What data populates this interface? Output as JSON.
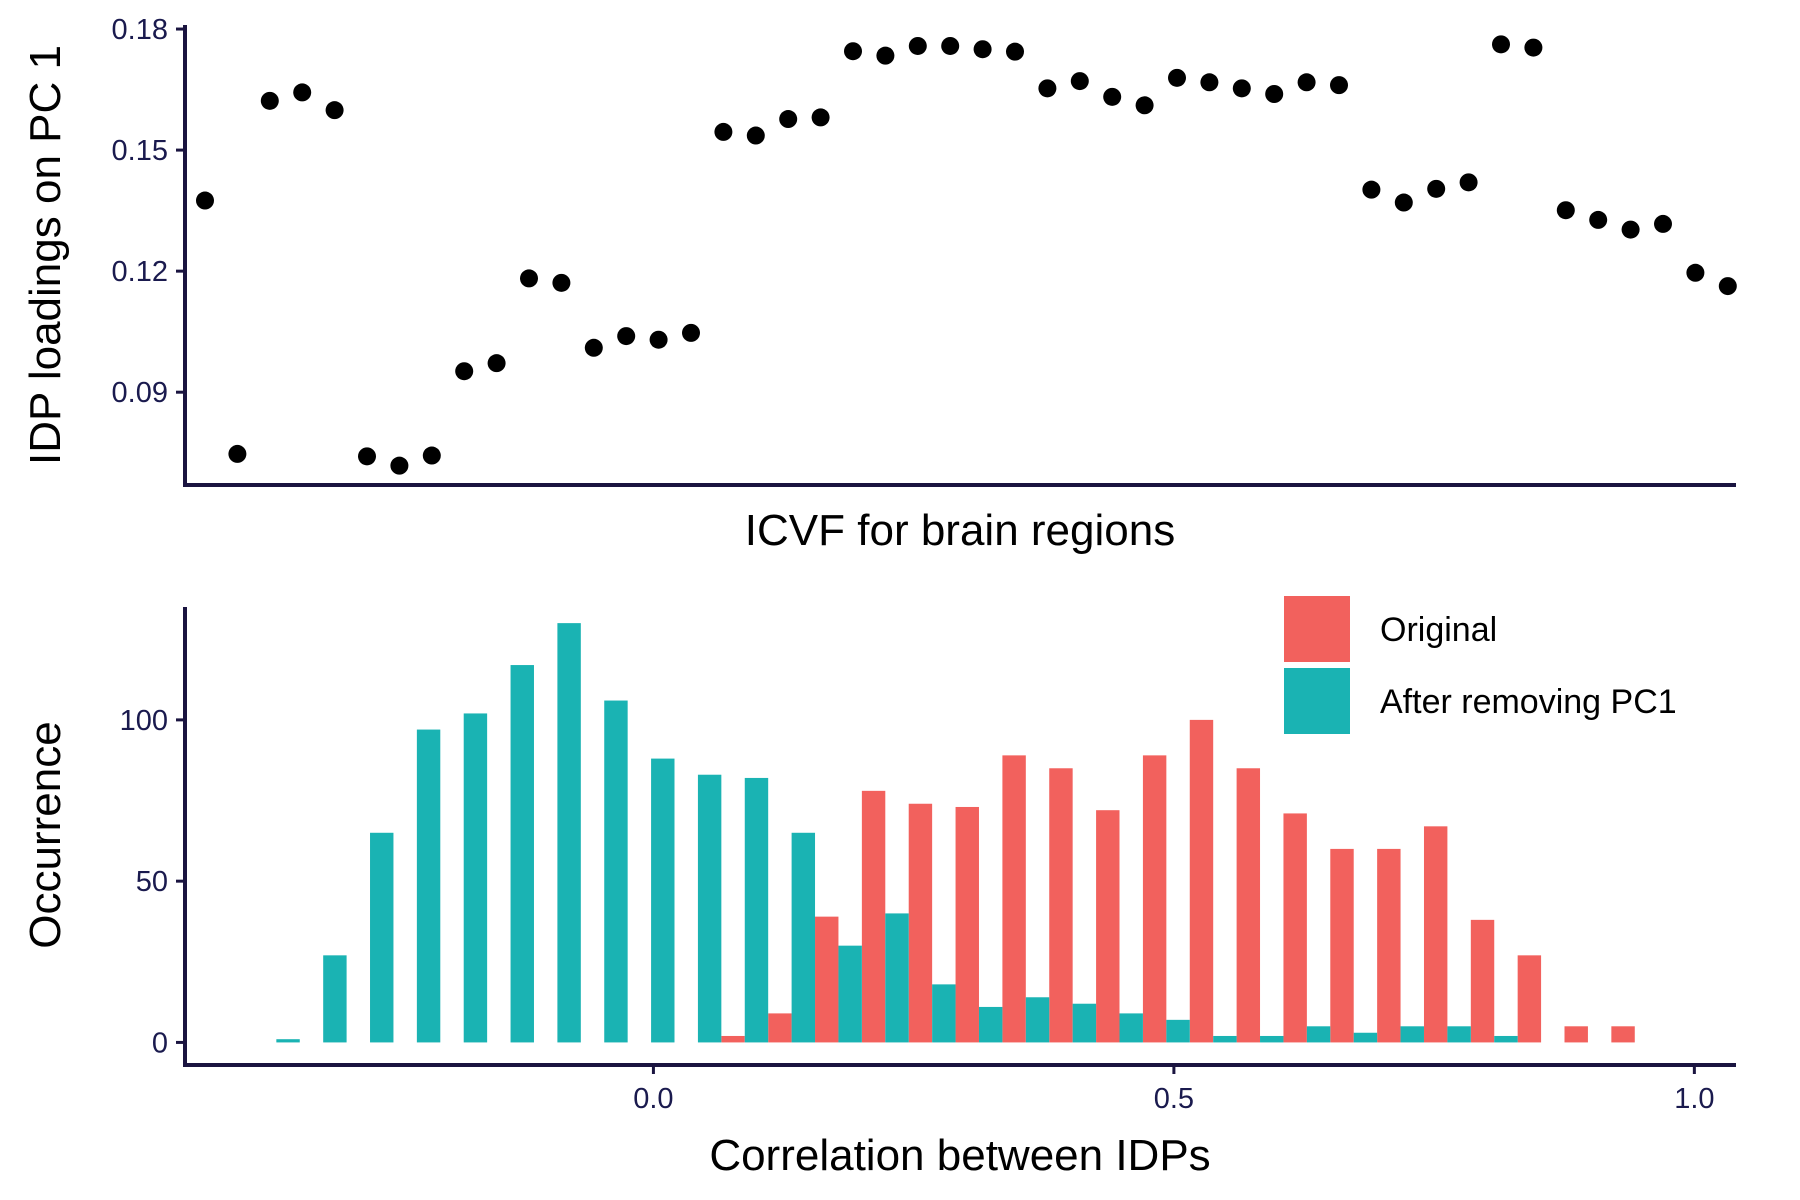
{
  "chart_data": [
    {
      "type": "scatter",
      "xlabel": "ICVF for brain regions",
      "ylabel": "IDP loadings on PC 1",
      "ylim": [
        0.067,
        0.181
      ],
      "yticks": [
        0.09,
        0.12,
        0.15,
        0.18
      ],
      "ytick_labels": [
        "0.09",
        "0.12",
        "0.15",
        "0.18"
      ],
      "x_ticks_shown": false,
      "marker_color": "#000000",
      "values": [
        0.1375,
        0.0747,
        0.1622,
        0.1643,
        0.1599,
        0.0741,
        0.0718,
        0.0743,
        0.0952,
        0.0972,
        0.1182,
        0.1171,
        0.101,
        0.1039,
        0.103,
        0.1047,
        0.1545,
        0.1536,
        0.1577,
        0.1581,
        0.1745,
        0.1734,
        0.1758,
        0.1758,
        0.175,
        0.1744,
        0.1653,
        0.1671,
        0.1632,
        0.1611,
        0.1679,
        0.1668,
        0.1653,
        0.1639,
        0.1668,
        0.1661,
        0.1402,
        0.137,
        0.1404,
        0.142,
        0.1762,
        0.1754,
        0.1351,
        0.1327,
        0.1303,
        0.1317,
        0.1196,
        0.1163
      ]
    },
    {
      "type": "bar",
      "xlabel": "Correlation between IDPs",
      "ylabel": "Occurrence",
      "xlim": [
        -0.45,
        1.04
      ],
      "ylim": [
        -7,
        135
      ],
      "xticks": [
        0.0,
        0.5,
        1.0
      ],
      "xtick_labels": [
        "0.0",
        "0.5",
        "1.0"
      ],
      "yticks": [
        0,
        50,
        100
      ],
      "ytick_labels": [
        "0",
        "50",
        "100"
      ],
      "bin_width": 0.045,
      "legend_position": "top-right",
      "series": [
        {
          "name": "Original",
          "color": "#f2615d",
          "x": [
            0.0765,
            0.1215,
            0.1665,
            0.2115,
            0.2565,
            0.3015,
            0.3465,
            0.3915,
            0.4365,
            0.4815,
            0.5265,
            0.5715,
            0.6165,
            0.6615,
            0.7065,
            0.7515,
            0.7965,
            0.8415,
            0.8865,
            0.9315
          ],
          "values": [
            2,
            9,
            39,
            78,
            74,
            73,
            89,
            85,
            72,
            89,
            100,
            85,
            71,
            60,
            60,
            67,
            38,
            27,
            5,
            5
          ]
        },
        {
          "name": "After removing PC1",
          "color": "#1ab3b3",
          "x": [
            -0.351,
            -0.306,
            -0.261,
            -0.216,
            -0.171,
            -0.126,
            -0.081,
            -0.036,
            0.009,
            0.054,
            0.099,
            0.144,
            0.189,
            0.234,
            0.279,
            0.324,
            0.369,
            0.414,
            0.459,
            0.504,
            0.549,
            0.594,
            0.639,
            0.684,
            0.729,
            0.774,
            0.819
          ],
          "values": [
            1,
            27,
            65,
            97,
            102,
            117,
            130,
            106,
            88,
            83,
            82,
            65,
            30,
            40,
            18,
            11,
            14,
            12,
            9,
            7,
            2,
            2,
            5,
            3,
            5,
            5,
            2
          ]
        }
      ]
    }
  ]
}
